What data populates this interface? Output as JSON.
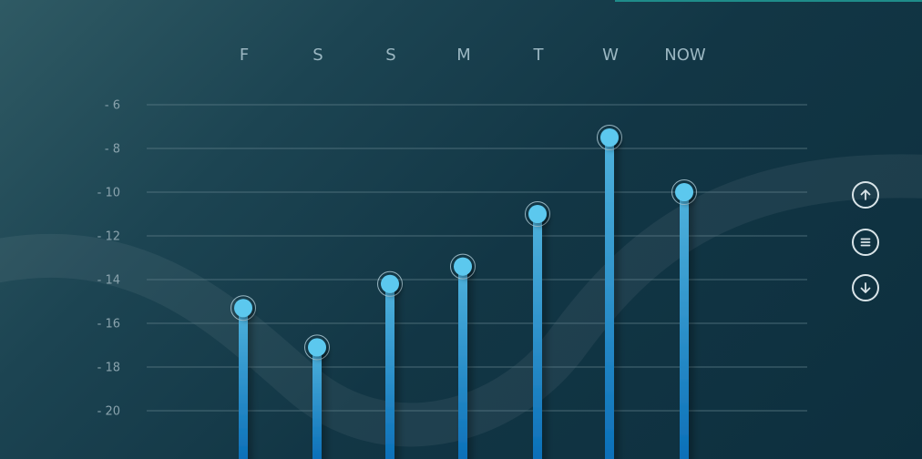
{
  "chart_data": {
    "type": "bar",
    "categories": [
      "F",
      "S",
      "S",
      "M",
      "T",
      "W",
      "NOW"
    ],
    "values": [
      -15.3,
      -17.1,
      -14.2,
      -13.4,
      -11.0,
      -7.5,
      -10.0
    ],
    "y_ticks": [
      -6,
      -8,
      -10,
      -12,
      -14,
      -16,
      -18,
      -20
    ],
    "y_tick_labels": [
      "- 6",
      "- 8",
      "- 10",
      "- 12",
      "- 14",
      "- 16",
      "- 18",
      "- 20"
    ],
    "ylim": [
      -22,
      -6
    ],
    "y_axis_inverted": true,
    "x_axis_position": "top",
    "grid": true,
    "marker": "circle",
    "colors": {
      "bar_top": "#4fb2dc",
      "bar_bottom": "#0b6fb8",
      "marker": "#5cc8ee",
      "grid": "#5d7d88"
    }
  },
  "controls": {
    "up": {
      "icon": "arrow-up-icon"
    },
    "menu": {
      "icon": "menu-icon"
    },
    "down": {
      "icon": "arrow-down-icon"
    }
  }
}
